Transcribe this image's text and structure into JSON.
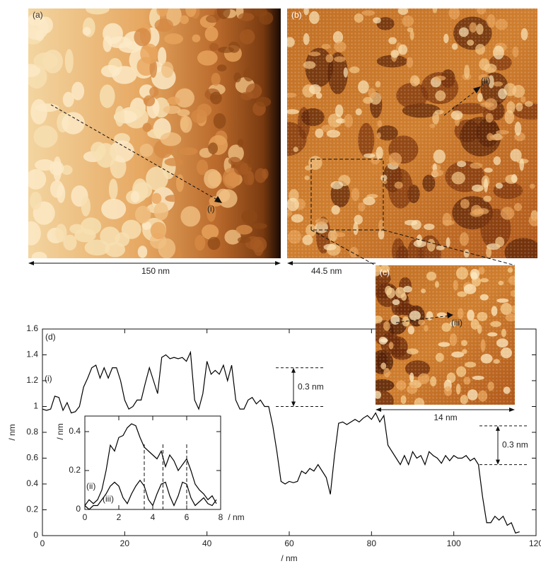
{
  "panels": {
    "a": "(a)",
    "b": "(b)",
    "c": "(c)",
    "d": "(d)"
  },
  "scale_bars": [
    "150 nm",
    "44.5 nm",
    "14 nm"
  ],
  "chart_data": [
    {
      "type": "line",
      "x_label": "/ nm",
      "y_label": "/ nm",
      "xlim": [
        0,
        120
      ],
      "ylim": [
        0,
        1.6
      ],
      "xticks": [
        0,
        20,
        40,
        60,
        80,
        100,
        120
      ],
      "yticks": [
        0,
        0.2,
        0.4,
        0.6,
        0.8,
        1,
        1.2,
        1.4,
        1.6
      ],
      "series": [
        {
          "name": "(i)",
          "color": "#000000",
          "x": [
            0,
            1,
            2,
            3,
            4,
            5,
            6,
            7,
            8,
            9,
            10,
            11,
            12,
            13,
            14,
            15,
            16,
            17,
            18,
            19,
            20,
            21,
            22,
            23,
            24,
            25,
            26,
            27,
            28,
            29,
            30,
            31,
            32,
            33,
            34,
            35,
            36,
            37,
            38,
            39,
            40,
            41,
            42,
            43,
            44,
            45,
            46,
            47,
            48,
            49,
            50,
            51,
            52,
            53,
            54,
            55,
            56,
            57,
            58,
            59,
            60,
            61,
            62,
            63,
            64,
            65,
            66,
            67,
            68,
            69,
            70,
            71,
            72,
            73,
            74,
            75,
            76,
            77,
            78,
            79,
            80,
            81,
            82,
            83,
            84,
            85,
            86,
            87,
            88,
            89,
            90,
            91,
            92,
            93,
            94,
            95,
            96,
            97,
            98,
            99,
            100,
            101,
            102,
            103,
            104,
            105,
            106,
            107,
            108,
            109,
            110,
            111,
            112,
            113,
            114,
            115,
            116
          ],
          "values": [
            0.98,
            0.97,
            0.98,
            1.08,
            1.07,
            0.97,
            1.03,
            0.95,
            0.96,
            1.0,
            1.15,
            1.22,
            1.3,
            1.32,
            1.22,
            1.3,
            1.22,
            1.3,
            1.3,
            1.2,
            1.05,
            0.98,
            1.0,
            1.05,
            1.05,
            1.18,
            1.3,
            1.2,
            1.1,
            1.38,
            1.4,
            1.37,
            1.38,
            1.37,
            1.38,
            1.35,
            1.42,
            1.05,
            0.98,
            1.1,
            1.35,
            1.25,
            1.28,
            1.25,
            1.32,
            1.2,
            1.32,
            1.05,
            0.98,
            0.98,
            1.05,
            1.07,
            1.02,
            1.05,
            1.0,
            1.0,
            0.85,
            0.65,
            0.42,
            0.4,
            0.42,
            0.41,
            0.42,
            0.5,
            0.48,
            0.52,
            0.5,
            0.55,
            0.5,
            0.45,
            0.32,
            0.62,
            0.87,
            0.88,
            0.86,
            0.88,
            0.9,
            0.88,
            0.91,
            0.93,
            0.9,
            0.95,
            0.88,
            0.93,
            0.7,
            0.65,
            0.6,
            0.55,
            0.62,
            0.55,
            0.65,
            0.6,
            0.62,
            0.55,
            0.65,
            0.62,
            0.6,
            0.56,
            0.62,
            0.58,
            0.62,
            0.6,
            0.6,
            0.62,
            0.58,
            0.6,
            0.55,
            0.3,
            0.1,
            0.1,
            0.15,
            0.12,
            0.15,
            0.08,
            0.1,
            0.02,
            0.03
          ]
        }
      ],
      "annotations": [
        {
          "label": "0.3 nm",
          "y": [
            1.0,
            1.3
          ]
        },
        {
          "label": "0.3 nm",
          "y": [
            0.55,
            0.85
          ]
        }
      ]
    },
    {
      "type": "line",
      "x_label": "/ nm",
      "y_label": "/ nm",
      "xlim": [
        0,
        8
      ],
      "ylim": [
        0,
        0.48
      ],
      "xticks": [
        0,
        2,
        4,
        6,
        8
      ],
      "yticks": [
        0,
        0.2,
        0.4
      ],
      "vlines": [
        3.5,
        4.6,
        6
      ],
      "series": [
        {
          "name": "(ii)",
          "color": "#000000",
          "x": [
            0,
            0.25,
            0.5,
            0.75,
            1,
            1.25,
            1.5,
            1.75,
            2,
            2.25,
            2.5,
            2.75,
            3,
            3.25,
            3.5,
            3.75,
            4,
            4.25,
            4.5,
            4.75,
            5,
            5.25,
            5.5,
            5.75,
            6,
            6.25,
            6.5,
            6.75,
            7,
            7.25,
            7.5,
            7.75
          ],
          "values": [
            0.02,
            0.05,
            0.03,
            0.05,
            0.1,
            0.2,
            0.33,
            0.3,
            0.37,
            0.38,
            0.42,
            0.44,
            0.43,
            0.37,
            0.32,
            0.3,
            0.28,
            0.26,
            0.3,
            0.22,
            0.28,
            0.25,
            0.2,
            0.23,
            0.26,
            0.2,
            0.13,
            0.1,
            0.08,
            0.05,
            0.07,
            0.03
          ]
        },
        {
          "name": "(iii)",
          "color": "#000000",
          "x": [
            0,
            0.25,
            0.5,
            0.75,
            1,
            1.25,
            1.5,
            1.75,
            2,
            2.25,
            2.5,
            2.75,
            3,
            3.25,
            3.5,
            3.75,
            4,
            4.25,
            4.5,
            4.75,
            5,
            5.25,
            5.5,
            5.75,
            6,
            6.25,
            6.5,
            6.75,
            7,
            7.25,
            7.5,
            7.75
          ],
          "values": [
            0.02,
            0.0,
            0.02,
            0.02,
            0.05,
            0.08,
            0.12,
            0.14,
            0.12,
            0.06,
            0.03,
            0.08,
            0.12,
            0.15,
            0.12,
            0.05,
            0.02,
            0.08,
            0.13,
            0.14,
            0.07,
            0.02,
            0.07,
            0.14,
            0.13,
            0.06,
            0.02,
            0.04,
            0.06,
            0.03,
            0.02,
            0.05
          ]
        }
      ]
    }
  ]
}
